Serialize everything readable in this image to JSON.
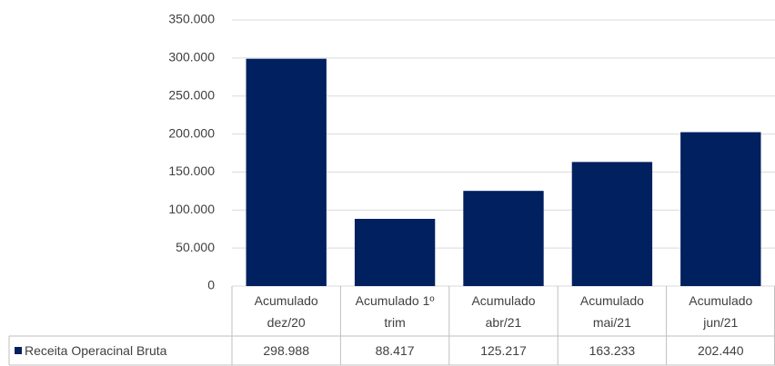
{
  "chart_data": {
    "type": "bar",
    "categories": [
      "Acumulado dez/20",
      "Acumulado 1º trim",
      "Acumulado abr/21",
      "Acumulado mai/21",
      "Acumulado jun/21"
    ],
    "series": [
      {
        "name": "Receita Operacinal Bruta",
        "color": "#002060",
        "values": [
          298988,
          88417,
          125217,
          163233,
          202440
        ],
        "value_labels": [
          "298.988",
          "88.417",
          "125.217",
          "163.233",
          "202.440"
        ]
      }
    ],
    "ylim": [
      0,
      350000
    ],
    "yticks": [
      0,
      {
        "value": 50000,
        "label": "50.000"
      },
      {
        "value": 100000,
        "label": "100.000"
      },
      {
        "value": 150000,
        "label": "150.000"
      },
      {
        "value": 200000,
        "label": "200.000"
      },
      {
        "value": 250000,
        "label": "250.000"
      },
      {
        "value": 300000,
        "label": "300.000"
      },
      {
        "value": 350000,
        "label": "350.000"
      }
    ],
    "grid": true,
    "legend": "bottom-left"
  }
}
